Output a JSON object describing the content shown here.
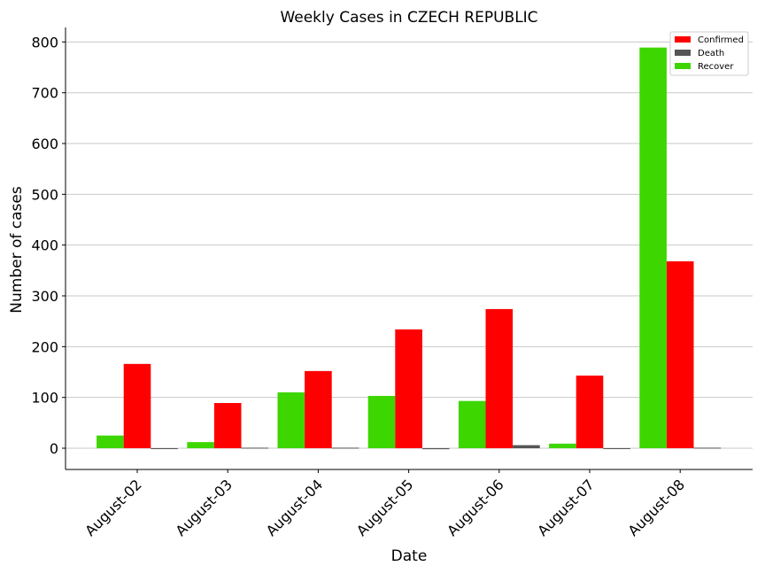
{
  "chart_data": {
    "type": "bar",
    "title": "Weekly Cases in CZECH REPUBLIC",
    "xlabel": "Date",
    "ylabel": "Number of cases",
    "categories": [
      "August-02",
      "August-03",
      "August-04",
      "August-05",
      "August-06",
      "August-07",
      "August-08"
    ],
    "series": [
      {
        "name": "Recover",
        "color": "#3dd600",
        "values": [
          25,
          12,
          110,
          103,
          93,
          9,
          789
        ]
      },
      {
        "name": "Confirmed",
        "color": "#ff0000",
        "values": [
          166,
          89,
          152,
          234,
          274,
          143,
          368
        ]
      },
      {
        "name": "Death",
        "color": "#555555",
        "values": [
          0,
          1,
          1,
          -2,
          6,
          0,
          1
        ]
      }
    ],
    "legend_order": [
      "Confirmed",
      "Death",
      "Recover"
    ],
    "legend_position": "top-right",
    "ylim": [
      -40,
      830
    ],
    "yticks": [
      0,
      100,
      200,
      300,
      400,
      500,
      600,
      700,
      800
    ],
    "grid": "horizontal"
  }
}
